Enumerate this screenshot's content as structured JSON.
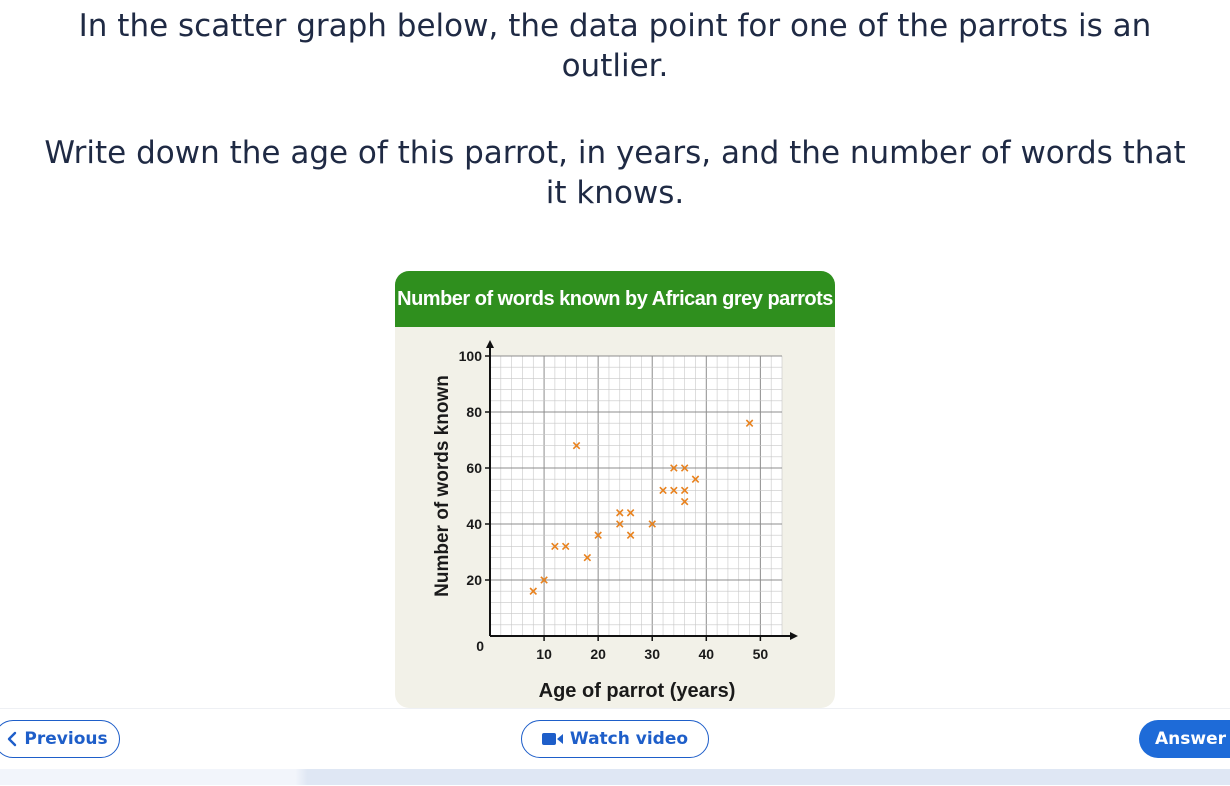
{
  "question": {
    "line1": "In the scatter graph below, the data point for one of the parrots is an outlier.",
    "line2": "Write down the age of this parrot, in years, and the number of words that it knows."
  },
  "chart_data": {
    "type": "scatter",
    "title": "Number of words known by African grey parrots",
    "xlabel": "Age of parrot (years)",
    "ylabel": "Number of words known",
    "xlim": [
      0,
      54
    ],
    "ylim": [
      0,
      100
    ],
    "x_ticks": [
      10,
      20,
      30,
      40,
      50
    ],
    "y_ticks": [
      0,
      20,
      40,
      60,
      80,
      100
    ],
    "grid": true,
    "marker": "x",
    "marker_color": "#e8821e",
    "points": [
      {
        "x": 8,
        "y": 16
      },
      {
        "x": 10,
        "y": 20
      },
      {
        "x": 12,
        "y": 32
      },
      {
        "x": 14,
        "y": 32
      },
      {
        "x": 16,
        "y": 68
      },
      {
        "x": 18,
        "y": 28
      },
      {
        "x": 20,
        "y": 36
      },
      {
        "x": 24,
        "y": 40
      },
      {
        "x": 24,
        "y": 44
      },
      {
        "x": 26,
        "y": 44
      },
      {
        "x": 26,
        "y": 36
      },
      {
        "x": 30,
        "y": 40
      },
      {
        "x": 32,
        "y": 52
      },
      {
        "x": 34,
        "y": 52
      },
      {
        "x": 34,
        "y": 60
      },
      {
        "x": 36,
        "y": 60
      },
      {
        "x": 36,
        "y": 52
      },
      {
        "x": 36,
        "y": 48
      },
      {
        "x": 38,
        "y": 56
      },
      {
        "x": 48,
        "y": 76
      }
    ]
  },
  "footer": {
    "previous_label": "Previous",
    "video_label": "Watch video",
    "answer_label": "Answer"
  },
  "colors": {
    "accent": "#1e5ec9",
    "chart_header": "#2f8f1e",
    "chart_bg": "#f2f1e8",
    "marker": "#e8821e"
  },
  "icons": {
    "previous": "chevron-left-icon",
    "video": "video-camera-icon"
  }
}
